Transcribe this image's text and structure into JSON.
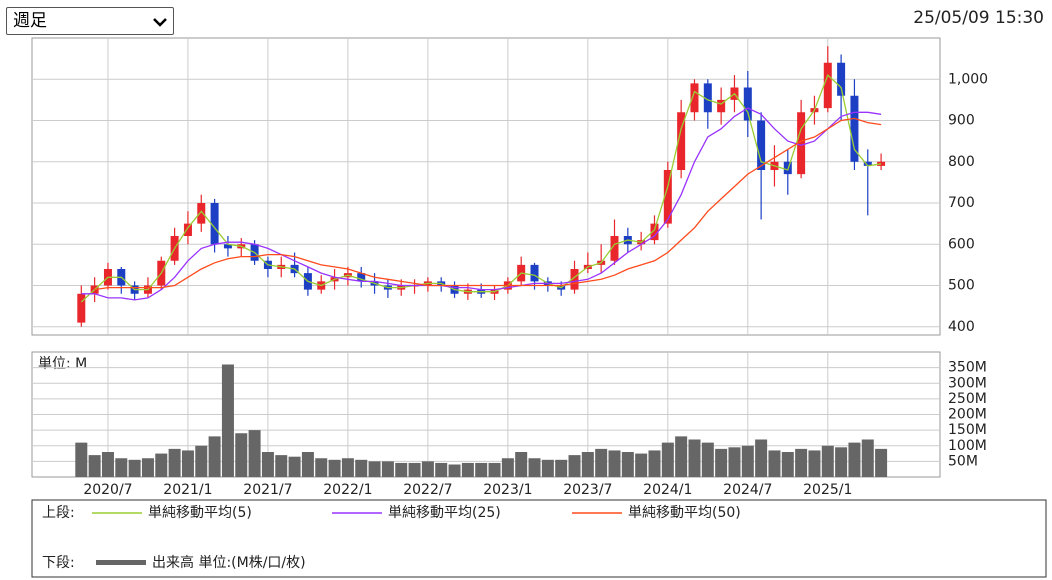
{
  "header": {
    "period_select": "週足",
    "datetime": "25/05/09 15:30"
  },
  "chart_data": {
    "type": "candlestick",
    "categories": [
      null,
      null,
      "2020/7",
      null,
      null,
      null,
      null,
      null,
      "2021/1",
      null,
      null,
      null,
      null,
      null,
      "2021/7",
      null,
      null,
      null,
      null,
      null,
      "2022/1",
      null,
      null,
      null,
      null,
      null,
      "2022/7",
      null,
      null,
      null,
      null,
      null,
      "2023/1",
      null,
      null,
      null,
      null,
      null,
      "2023/7",
      null,
      null,
      null,
      null,
      null,
      "2024/1",
      null,
      null,
      null,
      null,
      null,
      "2024/7",
      null,
      null,
      null,
      null,
      null,
      "2025/1",
      null,
      null,
      null,
      null
    ],
    "open": [
      410,
      480,
      500,
      540,
      500,
      480,
      500,
      560,
      620,
      650,
      700,
      600,
      590,
      600,
      560,
      540,
      550,
      530,
      490,
      510,
      520,
      530,
      510,
      500,
      490,
      500,
      500,
      510,
      500,
      480,
      490,
      480,
      490,
      510,
      550,
      510,
      500,
      490,
      540,
      550,
      560,
      620,
      600,
      610,
      650,
      780,
      920,
      990,
      920,
      950,
      980,
      900,
      780,
      800,
      770,
      920,
      930,
      1040,
      960,
      800,
      790
    ],
    "high": [
      500,
      520,
      555,
      545,
      510,
      520,
      570,
      640,
      680,
      720,
      710,
      620,
      615,
      610,
      570,
      570,
      580,
      545,
      525,
      540,
      545,
      545,
      530,
      515,
      515,
      515,
      520,
      520,
      510,
      505,
      505,
      500,
      520,
      570,
      555,
      520,
      510,
      560,
      580,
      600,
      660,
      640,
      630,
      670,
      800,
      950,
      1000,
      1000,
      980,
      1010,
      1020,
      920,
      840,
      830,
      950,
      960,
      1080,
      1060,
      1000,
      830,
      820
    ],
    "low": [
      400,
      460,
      490,
      480,
      465,
      470,
      490,
      550,
      600,
      630,
      580,
      570,
      570,
      550,
      520,
      520,
      520,
      475,
      480,
      490,
      500,
      495,
      480,
      470,
      475,
      480,
      485,
      485,
      470,
      465,
      470,
      465,
      480,
      500,
      490,
      485,
      475,
      480,
      530,
      530,
      550,
      580,
      585,
      600,
      640,
      760,
      900,
      880,
      890,
      920,
      860,
      660,
      740,
      720,
      760,
      890,
      920,
      900,
      780,
      670,
      780
    ],
    "close": [
      480,
      500,
      540,
      500,
      480,
      500,
      560,
      620,
      650,
      700,
      600,
      590,
      600,
      560,
      540,
      550,
      530,
      490,
      510,
      520,
      530,
      510,
      500,
      490,
      500,
      500,
      510,
      500,
      480,
      490,
      480,
      490,
      510,
      550,
      510,
      500,
      490,
      540,
      550,
      560,
      620,
      600,
      610,
      650,
      780,
      920,
      990,
      920,
      950,
      980,
      900,
      780,
      800,
      770,
      920,
      930,
      1040,
      960,
      800,
      790,
      800
    ],
    "up_color": "#e8262b",
    "down_color": "#1c3fc4",
    "ylim": [
      380,
      1100
    ],
    "yticks": [
      400,
      500,
      600,
      700,
      800,
      900,
      {
        "value": 1000,
        "label": "1,000"
      }
    ],
    "grid": true,
    "series": [
      {
        "name": "単純移動平均(5)",
        "color": "#9acd32",
        "values": [
          460,
          490,
          520,
          520,
          490,
          490,
          530,
          590,
          640,
          680,
          640,
          600,
          595,
          580,
          550,
          545,
          540,
          510,
          500,
          515,
          525,
          515,
          505,
          495,
          495,
          500,
          505,
          505,
          490,
          485,
          485,
          485,
          500,
          530,
          525,
          505,
          495,
          520,
          545,
          555,
          600,
          610,
          605,
          635,
          740,
          880,
          970,
          950,
          940,
          965,
          920,
          800,
          790,
          780,
          880,
          925,
          1010,
          980,
          830,
          790,
          795
        ]
      },
      {
        "name": "単純移動平均(25)",
        "color": "#9933ff",
        "values": [
          480,
          480,
          470,
          470,
          465,
          470,
          490,
          520,
          560,
          590,
          600,
          605,
          605,
          600,
          590,
          575,
          560,
          545,
          530,
          520,
          515,
          510,
          510,
          505,
          500,
          500,
          500,
          500,
          495,
          495,
          490,
          490,
          495,
          500,
          505,
          505,
          505,
          510,
          515,
          530,
          555,
          580,
          600,
          620,
          660,
          720,
          800,
          860,
          880,
          910,
          930,
          915,
          880,
          850,
          840,
          850,
          880,
          910,
          920,
          920,
          915
        ]
      },
      {
        "name": "単純移動平均(50)",
        "color": "#ff4a1c",
        "values": [
          null,
          490,
          495,
          495,
          495,
          495,
          495,
          500,
          520,
          540,
          555,
          565,
          570,
          570,
          575,
          575,
          570,
          560,
          550,
          545,
          540,
          530,
          520,
          515,
          510,
          505,
          500,
          500,
          500,
          500,
          500,
          500,
          500,
          500,
          500,
          500,
          500,
          505,
          510,
          515,
          525,
          540,
          550,
          560,
          580,
          610,
          640,
          680,
          710,
          740,
          770,
          790,
          810,
          830,
          850,
          860,
          880,
          900,
          905,
          895,
          890
        ]
      }
    ],
    "volume": {
      "label": "単位: M",
      "color": "#666666",
      "values": [
        110,
        70,
        80,
        60,
        55,
        60,
        75,
        90,
        85,
        100,
        130,
        360,
        140,
        150,
        80,
        70,
        65,
        80,
        60,
        55,
        60,
        55,
        50,
        50,
        45,
        45,
        50,
        45,
        40,
        45,
        45,
        45,
        60,
        80,
        60,
        55,
        55,
        70,
        80,
        90,
        85,
        80,
        75,
        85,
        110,
        130,
        120,
        110,
        90,
        95,
        100,
        120,
        85,
        80,
        90,
        85,
        100,
        95,
        110,
        120,
        90
      ],
      "ylim": [
        0,
        400
      ],
      "yticks": [
        {
          "value": 50,
          "label": "50M"
        },
        {
          "value": 100,
          "label": "100M"
        },
        {
          "value": 150,
          "label": "150M"
        },
        {
          "value": 200,
          "label": "200M"
        },
        {
          "value": 250,
          "label": "250M"
        },
        {
          "value": 300,
          "label": "300M"
        },
        {
          "value": 350,
          "label": "350M"
        }
      ]
    }
  },
  "legend": {
    "upper": "上段:",
    "lower": "下段:",
    "volume_name": "出来高 単位:(M株/口/枚)"
  }
}
